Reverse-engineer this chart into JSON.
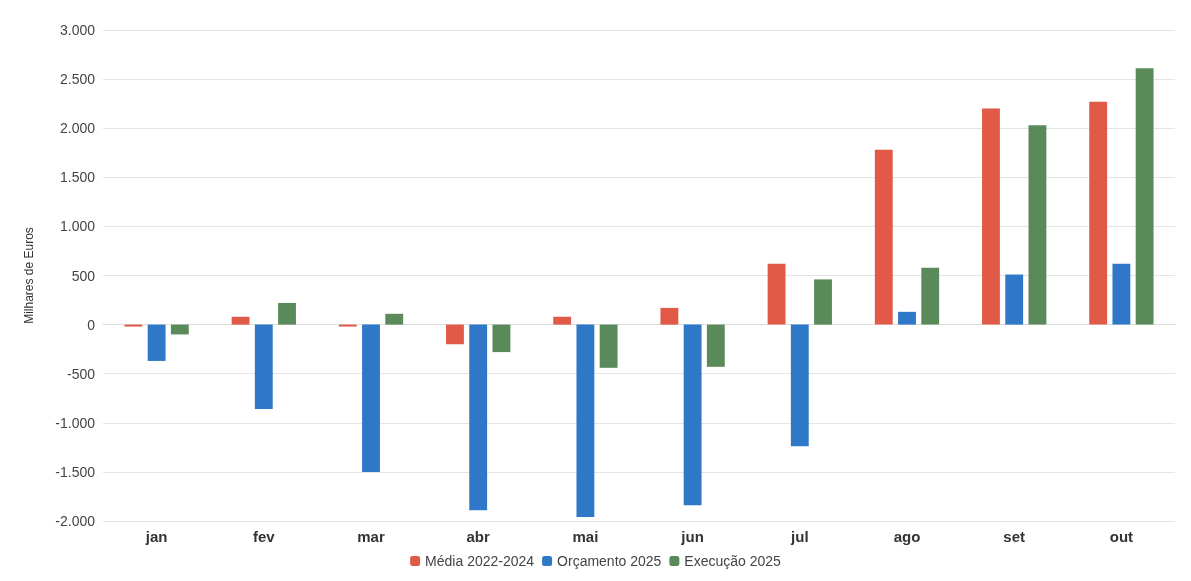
{
  "chart_data": {
    "type": "bar",
    "ylabel": "Milhares de Euros",
    "categories": [
      "jan",
      "fev",
      "mar",
      "abr",
      "mai",
      "jun",
      "jul",
      "ago",
      "set",
      "out"
    ],
    "series": [
      {
        "name": "Média 2022-2024",
        "color": "#e05a47",
        "values": [
          -20,
          80,
          -20,
          -200,
          80,
          170,
          620,
          1780,
          2200,
          2270
        ]
      },
      {
        "name": "Orçamento 2025",
        "color": "#2f78c8",
        "values": [
          -370,
          -860,
          -1500,
          -1890,
          -1960,
          -1840,
          -1240,
          130,
          510,
          620
        ]
      },
      {
        "name": "Execução 2025",
        "color": "#5a8a5a",
        "values": [
          -100,
          220,
          110,
          -280,
          -440,
          -430,
          460,
          580,
          2030,
          2610
        ]
      }
    ],
    "ylim": [
      -2000,
      3000
    ],
    "yticks": [
      {
        "value": -2000,
        "label": "-2.000"
      },
      {
        "value": -1500,
        "label": "-1.500"
      },
      {
        "value": -1000,
        "label": "-1.000"
      },
      {
        "value": -500,
        "label": "-500"
      },
      0,
      500,
      {
        "value": 1000,
        "label": "1.000"
      },
      {
        "value": 1500,
        "label": "1.500"
      },
      {
        "value": 2000,
        "label": "2.000"
      },
      {
        "value": 2500,
        "label": "2.500"
      },
      {
        "value": 3000,
        "label": "3.000"
      }
    ],
    "grid": "y",
    "legend": "bottom"
  }
}
